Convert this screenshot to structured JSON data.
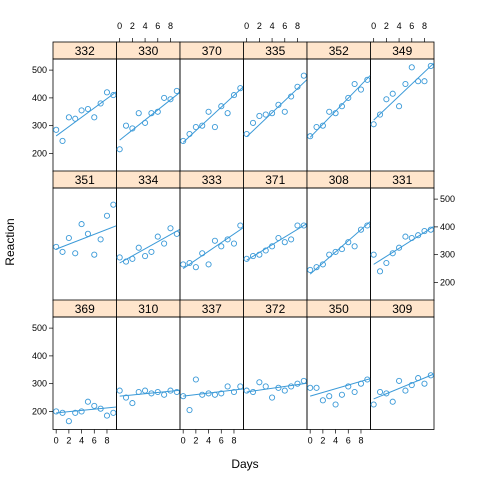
{
  "chart_data": {
    "type": "scatter",
    "xlabel": "Days",
    "ylabel": "Reaction",
    "xlim": [
      -0.5,
      9.5
    ],
    "ylim": [
      135,
      540
    ],
    "x_ticks": [
      0,
      2,
      4,
      6,
      8
    ],
    "y_ticks": [
      200,
      300,
      400,
      500
    ],
    "grid": false,
    "layout": {
      "columns": 6,
      "rows": 3
    },
    "colors": {
      "points": "#3b9ad8",
      "strip": "#ffe5cc",
      "frame": "#000000"
    },
    "panels": [
      {
        "subject": "332",
        "x": [
          0,
          1,
          2,
          3,
          4,
          5,
          6,
          7,
          8,
          9
        ],
        "y": [
          285,
          245,
          330,
          325,
          355,
          360,
          330,
          380,
          420,
          410
        ],
        "fit": [
          263,
          414
        ]
      },
      {
        "subject": "330",
        "x": [
          0,
          1,
          2,
          3,
          4,
          5,
          6,
          7,
          8,
          9
        ],
        "y": [
          215,
          300,
          290,
          345,
          310,
          345,
          350,
          400,
          395,
          425
        ],
        "fit": [
          248,
          411
        ]
      },
      {
        "subject": "370",
        "x": [
          0,
          1,
          2,
          3,
          4,
          5,
          6,
          7,
          8,
          9
        ],
        "y": [
          245,
          270,
          295,
          300,
          350,
          295,
          370,
          345,
          410,
          435
        ],
        "fit": [
          240,
          430
        ]
      },
      {
        "subject": "335",
        "x": [
          0,
          1,
          2,
          3,
          4,
          5,
          6,
          7,
          8,
          9
        ],
        "y": [
          270,
          310,
          335,
          340,
          345,
          375,
          350,
          405,
          440,
          480
        ],
        "fit": [
          260,
          455
        ]
      },
      {
        "subject": "352",
        "x": [
          0,
          1,
          2,
          3,
          4,
          5,
          6,
          7,
          8,
          9
        ],
        "y": [
          262,
          295,
          300,
          350,
          345,
          370,
          400,
          450,
          430,
          465
        ],
        "fit": [
          258,
          470
        ]
      },
      {
        "subject": "349",
        "x": [
          0,
          1,
          2,
          3,
          4,
          5,
          6,
          7,
          8,
          9
        ],
        "y": [
          305,
          340,
          395,
          415,
          370,
          450,
          510,
          460,
          460,
          515
        ],
        "fit": [
          320,
          515
        ]
      },
      {
        "subject": "351",
        "x": [
          0,
          1,
          2,
          3,
          4,
          5,
          6,
          7,
          8,
          9
        ],
        "y": [
          328,
          310,
          360,
          305,
          410,
          375,
          300,
          355,
          440,
          480
        ],
        "fit": [
          320,
          400
        ]
      },
      {
        "subject": "334",
        "x": [
          0,
          1,
          2,
          3,
          4,
          5,
          6,
          7,
          8,
          9
        ],
        "y": [
          290,
          275,
          285,
          325,
          295,
          310,
          365,
          340,
          395,
          375
        ],
        "fit": [
          270,
          385
        ]
      },
      {
        "subject": "333",
        "x": [
          0,
          1,
          2,
          3,
          4,
          5,
          6,
          7,
          8,
          9
        ],
        "y": [
          265,
          270,
          255,
          305,
          265,
          350,
          330,
          355,
          340,
          405
        ],
        "fit": [
          250,
          390
        ]
      },
      {
        "subject": "371",
        "x": [
          0,
          1,
          2,
          3,
          4,
          5,
          6,
          7,
          8,
          9
        ],
        "y": [
          285,
          295,
          300,
          315,
          330,
          360,
          345,
          355,
          405,
          405
        ],
        "fit": [
          280,
          405
        ]
      },
      {
        "subject": "308",
        "x": [
          0,
          1,
          2,
          3,
          4,
          5,
          6,
          7,
          8,
          9
        ],
        "y": [
          245,
          255,
          265,
          300,
          310,
          320,
          345,
          330,
          390,
          405
        ],
        "fit": [
          230,
          410
        ]
      },
      {
        "subject": "331",
        "x": [
          0,
          1,
          2,
          3,
          4,
          5,
          6,
          7,
          8,
          9
        ],
        "y": [
          300,
          240,
          270,
          305,
          325,
          365,
          360,
          370,
          385,
          390
        ],
        "fit": [
          265,
          395
        ]
      },
      {
        "subject": "369",
        "x": [
          0,
          1,
          2,
          3,
          4,
          5,
          6,
          7,
          8,
          9
        ],
        "y": [
          200,
          195,
          165,
          195,
          200,
          235,
          220,
          210,
          185,
          195
        ],
        "fit": [
          195,
          215
        ]
      },
      {
        "subject": "310",
        "x": [
          0,
          1,
          2,
          3,
          4,
          5,
          6,
          7,
          8,
          9
        ],
        "y": [
          275,
          250,
          230,
          270,
          275,
          265,
          270,
          260,
          275,
          270
        ],
        "fit": [
          255,
          275
        ]
      },
      {
        "subject": "337",
        "x": [
          0,
          1,
          2,
          3,
          4,
          5,
          6,
          7,
          8,
          9
        ],
        "y": [
          255,
          205,
          315,
          260,
          265,
          260,
          265,
          290,
          270,
          290
        ],
        "fit": [
          255,
          280
        ]
      },
      {
        "subject": "372",
        "x": [
          0,
          1,
          2,
          3,
          4,
          5,
          6,
          7,
          8,
          9
        ],
        "y": [
          275,
          270,
          305,
          290,
          250,
          285,
          275,
          290,
          300,
          310
        ],
        "fit": [
          270,
          300
        ]
      },
      {
        "subject": "350",
        "x": [
          0,
          1,
          2,
          3,
          4,
          5,
          6,
          7,
          8,
          9
        ],
        "y": [
          285,
          285,
          240,
          255,
          225,
          260,
          290,
          270,
          300,
          315
        ],
        "fit": [
          255,
          315
        ]
      },
      {
        "subject": "309",
        "x": [
          0,
          1,
          2,
          3,
          4,
          5,
          6,
          7,
          8,
          9
        ],
        "y": [
          225,
          270,
          265,
          235,
          310,
          275,
          295,
          320,
          300,
          330
        ],
        "fit": [
          245,
          330
        ]
      }
    ]
  }
}
